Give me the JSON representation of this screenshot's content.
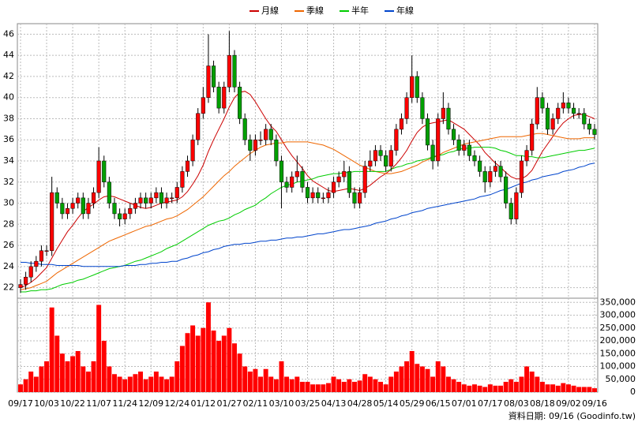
{
  "chart_data": {
    "type": "candlestick",
    "categories": [
      "09/17",
      null,
      null,
      null,
      null,
      "10/03",
      null,
      null,
      null,
      null,
      "10/22",
      null,
      null,
      null,
      null,
      "11/07",
      null,
      null,
      null,
      null,
      "11/24",
      null,
      null,
      null,
      null,
      "12/09",
      null,
      null,
      null,
      null,
      "12/24",
      null,
      null,
      null,
      null,
      "01/12",
      null,
      null,
      null,
      null,
      "01/27",
      null,
      null,
      null,
      null,
      "02/11",
      null,
      null,
      null,
      null,
      "03/10",
      null,
      null,
      null,
      null,
      "03/25",
      null,
      null,
      null,
      null,
      "04/13",
      null,
      null,
      null,
      null,
      "04/28",
      null,
      null,
      null,
      null,
      "05/14",
      null,
      null,
      null,
      null,
      "05/29",
      null,
      null,
      null,
      null,
      "06/15",
      null,
      null,
      null,
      null,
      "07/01",
      null,
      null,
      null,
      null,
      "07/17",
      null,
      null,
      null,
      null,
      "08/03",
      null,
      null,
      null,
      null,
      "08/18",
      null,
      null,
      null,
      null,
      "09/02",
      null,
      null,
      null,
      null,
      "09/16"
    ],
    "open": [
      22.0,
      22.3,
      23,
      24,
      24.5,
      25.5,
      25.5,
      31,
      30,
      29,
      29.5,
      30,
      30.5,
      29,
      30,
      31,
      34,
      32,
      30,
      29,
      28.5,
      29,
      29.5,
      30,
      30.5,
      30,
      30.5,
      31,
      30,
      30.5,
      30.5,
      31.5,
      33,
      34,
      36,
      38.5,
      40,
      43,
      41,
      39,
      41,
      44,
      41,
      38,
      36,
      35,
      36,
      36,
      37,
      36,
      34,
      32,
      31.5,
      32.5,
      33,
      31.5,
      30.5,
      31,
      30.5,
      30.5,
      31,
      32,
      32.5,
      33,
      31,
      30,
      31,
      33.5,
      34,
      35,
      34.5,
      33.5,
      35,
      37,
      38,
      40,
      42,
      40,
      38,
      35.5,
      34,
      38,
      39,
      37,
      36,
      35,
      35.5,
      34.5,
      34,
      33,
      32,
      33,
      33.5,
      32.5,
      30,
      28.5,
      31,
      34,
      35,
      37.5,
      40,
      39,
      37,
      38,
      39,
      39.5,
      39,
      38.5,
      38.5,
      37.5,
      37
    ],
    "high": [
      22.8,
      23.5,
      24.5,
      25,
      26,
      26,
      32.5,
      31.5,
      30.5,
      30,
      30.5,
      31,
      31,
      30.5,
      31.5,
      35.3,
      34.5,
      32.5,
      30.5,
      29.5,
      29.5,
      30,
      30.5,
      31,
      31,
      31,
      31.5,
      31.5,
      31,
      31,
      32,
      33.5,
      34.5,
      36.5,
      39,
      41,
      46,
      43.5,
      41.5,
      41.5,
      46.3,
      44.5,
      41.5,
      38.5,
      36.5,
      36.5,
      36.8,
      37.5,
      37.5,
      36.5,
      34.5,
      32.5,
      33,
      34.5,
      33.5,
      32,
      31.5,
      31.5,
      31,
      31.5,
      32.5,
      33,
      34,
      33.5,
      31.5,
      31.5,
      34,
      35,
      35.5,
      35.5,
      35,
      35.5,
      37.5,
      38.5,
      40.5,
      44,
      42.5,
      40.5,
      38.5,
      36,
      38.5,
      40.5,
      39.5,
      37.5,
      36.5,
      36,
      36,
      35,
      34.5,
      33.5,
      33.5,
      34,
      34,
      33,
      30.5,
      31.5,
      34.5,
      35.5,
      38,
      41,
      40.5,
      39.5,
      38.5,
      39.5,
      40.5,
      40,
      39.5,
      39,
      39,
      38,
      37.5
    ],
    "low": [
      21.5,
      21.8,
      22.5,
      23.5,
      24,
      25,
      25,
      29.5,
      28.5,
      28.5,
      29,
      29.5,
      28.5,
      28.5,
      29.5,
      30.5,
      31.5,
      29.5,
      28.5,
      27.8,
      28,
      28.5,
      29,
      29.5,
      29.5,
      29.5,
      30,
      29.5,
      29.5,
      30,
      30,
      31,
      32.5,
      33.5,
      35.5,
      38,
      39.5,
      40.5,
      38.5,
      38.5,
      40.5,
      40.5,
      37.5,
      35.5,
      34,
      34.5,
      35.5,
      35.5,
      35.5,
      33.5,
      29.5,
      31,
      31,
      32,
      31,
      30,
      30,
      30,
      30,
      30,
      30.5,
      31.5,
      32,
      30.5,
      29.5,
      29.5,
      30.5,
      33,
      33.5,
      34,
      33,
      33,
      34.5,
      36.5,
      37.5,
      39.5,
      39.5,
      37.5,
      35,
      33.2,
      33.5,
      37.5,
      36.5,
      35.5,
      34.5,
      34.5,
      34,
      33.5,
      32.5,
      31,
      31.5,
      32.5,
      32,
      29.5,
      28,
      28,
      30.5,
      33.5,
      34.5,
      37,
      38.5,
      36.5,
      36.5,
      37.5,
      38.5,
      38.5,
      38,
      38,
      37,
      36.5,
      36
    ],
    "close": [
      22.3,
      23,
      24,
      24.5,
      25.5,
      25.5,
      31,
      30,
      29,
      29.5,
      30,
      30.5,
      29,
      30,
      31,
      34,
      32,
      30,
      29,
      28.5,
      29,
      29.5,
      30,
      30.5,
      30,
      30.5,
      31,
      30,
      30.5,
      30.5,
      31.5,
      33,
      34,
      36,
      38.5,
      40,
      43,
      41,
      39,
      41,
      44,
      41,
      38,
      36,
      35,
      36,
      36,
      37,
      36,
      34,
      32,
      31.5,
      32.5,
      33,
      31.5,
      30.5,
      31,
      30.5,
      30.5,
      31,
      32,
      32.5,
      33,
      31,
      30,
      31,
      33.5,
      34,
      35,
      34.5,
      33.5,
      35,
      37,
      38,
      40,
      42,
      40,
      38,
      35.5,
      34,
      38,
      39,
      37,
      36,
      35,
      35.5,
      34.5,
      34,
      33,
      32,
      33,
      33.5,
      32.5,
      30,
      28.5,
      31,
      34,
      35,
      37.5,
      40,
      39,
      37,
      38,
      39,
      39.5,
      39,
      38.5,
      38.5,
      37.5,
      37,
      36.5
    ],
    "up_color": "#ff0000",
    "down_color": "#00a000",
    "ylim": [
      21,
      47
    ],
    "yticks": [
      22,
      24,
      26,
      28,
      30,
      32,
      34,
      36,
      38,
      40,
      42,
      44,
      46
    ],
    "grid": true,
    "series": [
      {
        "name": "月線",
        "color": "#cc0000",
        "values": [
          22.0,
          22.2,
          22.5,
          22.9,
          23.4,
          23.9,
          24.8,
          25.7,
          26.5,
          27.3,
          27.9,
          28.6,
          29.2,
          29.6,
          29.9,
          30.3,
          30.6,
          30.7,
          30.6,
          30.4,
          30.2,
          30.0,
          29.8,
          29.6,
          29.5,
          29.6,
          29.8,
          30.0,
          30.1,
          30.2,
          30.3,
          30.6,
          31.1,
          31.8,
          32.6,
          33.6,
          34.9,
          36.0,
          37.0,
          38.0,
          39.1,
          40.0,
          40.5,
          40.6,
          40.3,
          39.6,
          38.8,
          38.0,
          37.3,
          36.8,
          36.0,
          35.2,
          34.5,
          33.9,
          33.3,
          32.6,
          32.1,
          31.8,
          31.5,
          31.2,
          31.1,
          31.2,
          31.3,
          31.4,
          31.3,
          31.2,
          31.4,
          31.7,
          32.1,
          32.5,
          32.8,
          33.2,
          33.7,
          34.3,
          35.0,
          35.9,
          36.7,
          37.2,
          37.5,
          37.6,
          37.7,
          37.8,
          37.9,
          37.6,
          37.3,
          37.0,
          36.5,
          36.0,
          35.5,
          34.8,
          34.3,
          33.8,
          33.4,
          32.9,
          32.5,
          32.3,
          32.3,
          32.6,
          33.1,
          34.0,
          34.9,
          35.6,
          36.3,
          37.0,
          37.6,
          38.0,
          38.3,
          38.4,
          38.4,
          38.2,
          38.0
        ]
      },
      {
        "name": "季線",
        "color": "#ee6600",
        "values": [
          21.8,
          21.9,
          22.0,
          22.2,
          22.4,
          22.6,
          23.0,
          23.4,
          23.7,
          24.0,
          24.3,
          24.6,
          24.9,
          25.2,
          25.5,
          25.8,
          26.1,
          26.4,
          26.6,
          26.8,
          27.0,
          27.2,
          27.4,
          27.6,
          27.8,
          27.9,
          28.1,
          28.3,
          28.5,
          28.6,
          28.8,
          29.1,
          29.4,
          29.8,
          30.2,
          30.6,
          31.1,
          31.6,
          32.1,
          32.6,
          33.0,
          33.5,
          33.9,
          34.3,
          34.7,
          35.0,
          35.3,
          35.5,
          35.6,
          35.7,
          35.7,
          35.8,
          35.8,
          35.8,
          35.8,
          35.8,
          35.7,
          35.6,
          35.5,
          35.3,
          35.1,
          34.8,
          34.5,
          34.2,
          33.9,
          33.6,
          33.4,
          33.2,
          33.0,
          32.9,
          32.8,
          32.8,
          32.9,
          33.0,
          33.2,
          33.4,
          33.6,
          33.9,
          34.1,
          34.3,
          34.5,
          34.8,
          35.0,
          35.2,
          35.4,
          35.6,
          35.7,
          35.8,
          35.9,
          36.0,
          36.1,
          36.2,
          36.3,
          36.3,
          36.3,
          36.3,
          36.3,
          36.4,
          36.5,
          36.6,
          36.6,
          36.5,
          36.4,
          36.3,
          36.2,
          36.1,
          36.1,
          36.1,
          36.2,
          36.2,
          36.2
        ]
      },
      {
        "name": "半年",
        "color": "#00cc00",
        "values": [
          21.6,
          21.6,
          21.7,
          21.7,
          21.8,
          21.8,
          21.9,
          22.1,
          22.3,
          22.4,
          22.5,
          22.7,
          22.8,
          23.0,
          23.2,
          23.4,
          23.6,
          23.8,
          23.9,
          24.0,
          24.1,
          24.3,
          24.5,
          24.6,
          24.8,
          25.0,
          25.2,
          25.4,
          25.7,
          25.9,
          26.1,
          26.4,
          26.7,
          27.0,
          27.3,
          27.6,
          27.9,
          28.1,
          28.3,
          28.4,
          28.6,
          28.9,
          29.1,
          29.4,
          29.6,
          29.8,
          30.2,
          30.5,
          30.9,
          31.2,
          31.5,
          31.7,
          31.8,
          32.0,
          32.1,
          32.2,
          32.3,
          32.5,
          32.6,
          32.7,
          32.8,
          32.8,
          32.9,
          32.9,
          33.0,
          33.0,
          33.0,
          33.0,
          33.0,
          33.0,
          33.0,
          33.2,
          33.4,
          33.5,
          33.7,
          33.8,
          34.0,
          34.1,
          34.2,
          34.4,
          34.5,
          34.6,
          34.8,
          34.9,
          35.1,
          35.2,
          35.2,
          35.3,
          35.3,
          35.3,
          35.3,
          35.2,
          35.0,
          34.9,
          34.7,
          34.5,
          34.5,
          34.4,
          34.4,
          34.3,
          34.3,
          34.4,
          34.5,
          34.6,
          34.7,
          34.8,
          34.9,
          35.0,
          35.0,
          35.1,
          35.2
        ]
      },
      {
        "name": "年線",
        "color": "#0044cc",
        "values": [
          24.4,
          24.4,
          24.3,
          24.3,
          24.2,
          24.2,
          24.2,
          24.1,
          24.1,
          24.1,
          24.1,
          24.1,
          24.0,
          24.0,
          24.0,
          24.0,
          24.0,
          24.0,
          24.0,
          24.0,
          24.1,
          24.1,
          24.1,
          24.2,
          24.2,
          24.3,
          24.3,
          24.4,
          24.4,
          24.5,
          24.5,
          24.7,
          24.8,
          25.0,
          25.1,
          25.3,
          25.4,
          25.6,
          25.7,
          25.9,
          26.0,
          26.1,
          26.1,
          26.2,
          26.2,
          26.3,
          26.4,
          26.4,
          26.5,
          26.5,
          26.6,
          26.7,
          26.7,
          26.8,
          26.8,
          26.9,
          27.0,
          27.1,
          27.1,
          27.2,
          27.3,
          27.4,
          27.5,
          27.5,
          27.6,
          27.7,
          27.8,
          27.9,
          28.1,
          28.2,
          28.3,
          28.5,
          28.6,
          28.8,
          28.9,
          29.1,
          29.2,
          29.3,
          29.5,
          29.6,
          29.7,
          29.8,
          29.9,
          30.0,
          30.1,
          30.2,
          30.3,
          30.4,
          30.6,
          30.7,
          30.8,
          31.0,
          31.2,
          31.3,
          31.5,
          31.7,
          31.9,
          32.0,
          32.2,
          32.3,
          32.5,
          32.6,
          32.7,
          32.8,
          33.0,
          33.1,
          33.2,
          33.4,
          33.5,
          33.7,
          33.8
        ]
      }
    ],
    "volume": {
      "color": "#ff0000",
      "ylim": [
        0,
        360000
      ],
      "yticks": [
        0,
        {
          "value": 50000,
          "label": "50,000"
        },
        {
          "value": 100000,
          "label": "100,000"
        },
        {
          "value": 150000,
          "label": "150,000"
        },
        {
          "value": 200000,
          "label": "200,000"
        },
        {
          "value": 250000,
          "label": "250,000"
        },
        {
          "value": 300000,
          "label": "300,000"
        },
        {
          "value": 350000,
          "label": "350,000"
        }
      ],
      "values": [
        30000,
        50000,
        80000,
        60000,
        100000,
        120000,
        330000,
        220000,
        150000,
        120000,
        140000,
        160000,
        100000,
        80000,
        120000,
        340000,
        200000,
        100000,
        70000,
        60000,
        50000,
        60000,
        70000,
        80000,
        50000,
        60000,
        80000,
        60000,
        50000,
        60000,
        120000,
        180000,
        230000,
        260000,
        220000,
        250000,
        350000,
        240000,
        200000,
        220000,
        250000,
        190000,
        150000,
        100000,
        80000,
        90000,
        60000,
        90000,
        60000,
        50000,
        120000,
        60000,
        50000,
        60000,
        40000,
        40000,
        30000,
        30000,
        30000,
        35000,
        60000,
        50000,
        40000,
        50000,
        40000,
        45000,
        70000,
        60000,
        50000,
        40000,
        30000,
        60000,
        80000,
        100000,
        120000,
        160000,
        110000,
        100000,
        90000,
        60000,
        120000,
        100000,
        60000,
        50000,
        40000,
        30000,
        25000,
        30000,
        25000,
        20000,
        30000,
        25000,
        25000,
        40000,
        50000,
        40000,
        60000,
        100000,
        80000,
        60000,
        40000,
        30000,
        30000,
        25000,
        35000,
        30000,
        25000,
        20000,
        20000,
        20000,
        15000
      ]
    },
    "footer": "資料日期: 09/16 (Goodinfo.tw)"
  }
}
